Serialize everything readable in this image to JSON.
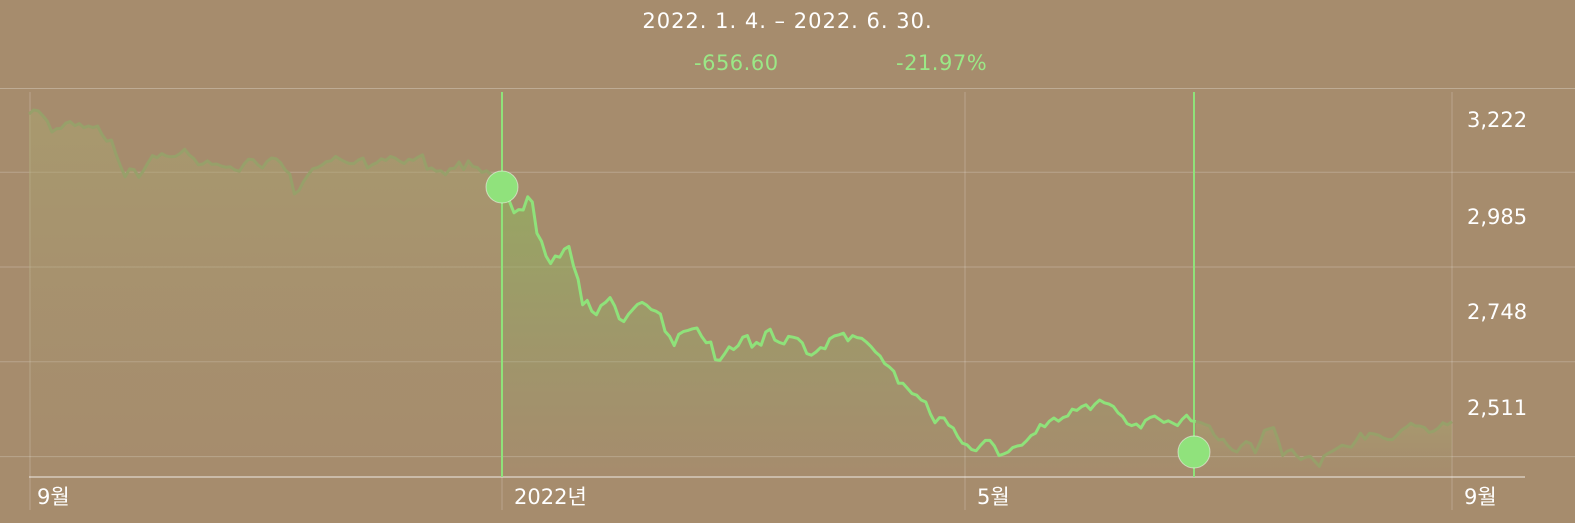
{
  "header": {
    "range": "2022. 1. 4. – 2022. 6. 30.",
    "change_value": "-656.60",
    "change_percent": "-21.97%"
  },
  "colors": {
    "background": "#a68c6d",
    "line_selected": "#8fe27a",
    "line_dim": "#97a06a",
    "marker": "#90e27c"
  },
  "chart_data": {
    "type": "area",
    "title": "",
    "y_tick_labels": [
      "3,222",
      "2,985",
      "2,748",
      "2,511"
    ],
    "y_ticks": [
      3222,
      2985,
      2748,
      2511
    ],
    "ylim": [
      2395,
      3355
    ],
    "x_tick_labels": [
      "9월",
      "2022년",
      "5월",
      "9월"
    ],
    "grid": true,
    "series": [
      {
        "values": [
          3300,
          3310,
          3308,
          3296,
          3282,
          3255,
          3263,
          3264,
          3277,
          3281,
          3271,
          3276,
          3266,
          3270,
          3266,
          3270,
          3248,
          3232,
          3235,
          3200,
          3170,
          3143,
          3163,
          3161,
          3142,
          3158,
          3178,
          3196,
          3191,
          3201,
          3195,
          3193,
          3194,
          3201,
          3212,
          3198,
          3189,
          3173,
          3175,
          3183,
          3174,
          3175,
          3170,
          3167,
          3168,
          3160,
          3157,
          3175,
          3187,
          3186,
          3173,
          3165,
          3181,
          3190,
          3188,
          3178,
          3160,
          3150,
          3100,
          3109,
          3131,
          3148,
          3163,
          3166,
          3172,
          3181,
          3183,
          3194,
          3187,
          3181,
          3176,
          3176,
          3185,
          3190,
          3165,
          3173,
          3178,
          3188,
          3184,
          3194,
          3190,
          3182,
          3176,
          3187,
          3184,
          3192,
          3198,
          3162,
          3165,
          3157,
          3158,
          3148,
          3163,
          3164,
          3180,
          3161,
          3183,
          3169,
          3166,
          3154,
          3158,
          3149,
          3147,
          3121,
          3108,
          3082,
          3053,
          3061,
          3060,
          3093,
          3080,
          3002,
          2982,
          2945,
          2926,
          2945,
          2942,
          2962,
          2969,
          2920,
          2887,
          2823,
          2834,
          2807,
          2798,
          2821,
          2829,
          2841,
          2820,
          2788,
          2781,
          2799,
          2812,
          2824,
          2829,
          2822,
          2811,
          2807,
          2800,
          2757,
          2744,
          2721,
          2749,
          2756,
          2759,
          2763,
          2765,
          2744,
          2728,
          2730,
          2686,
          2684,
          2700,
          2718,
          2711,
          2721,
          2742,
          2746,
          2717,
          2729,
          2722,
          2755,
          2762,
          2735,
          2729,
          2725,
          2744,
          2742,
          2739,
          2728,
          2701,
          2697,
          2705,
          2716,
          2713,
          2738,
          2745,
          2748,
          2752,
          2733,
          2746,
          2741,
          2739,
          2730,
          2719,
          2705,
          2695,
          2676,
          2668,
          2657,
          2627,
          2627,
          2614,
          2601,
          2597,
          2585,
          2580,
          2550,
          2528,
          2541,
          2540,
          2522,
          2515,
          2493,
          2477,
          2473,
          2461,
          2458,
          2472,
          2484,
          2484,
          2470,
          2446,
          2450,
          2455,
          2466,
          2470,
          2472,
          2483,
          2496,
          2502,
          2524,
          2518,
          2532,
          2540,
          2532,
          2541,
          2545,
          2562,
          2559,
          2568,
          2573,
          2561,
          2575,
          2585,
          2578,
          2575,
          2569,
          2553,
          2544,
          2526,
          2521,
          2525,
          2515,
          2534,
          2541,
          2545,
          2537,
          2529,
          2533,
          2527,
          2521,
          2536,
          2547,
          2533,
          2531,
          2529,
          2524,
          2520,
          2498,
          2485,
          2487,
          2471,
          2460,
          2455,
          2471,
          2481,
          2476,
          2453,
          2478,
          2509,
          2513,
          2516,
          2485,
          2446,
          2457,
          2461,
          2446,
          2436,
          2442,
          2444,
          2432,
          2419,
          2445,
          2452,
          2458,
          2465,
          2472,
          2469,
          2467,
          2483,
          2502,
          2487,
          2502,
          2500,
          2497,
          2490,
          2486,
          2486,
          2497,
          2510,
          2517,
          2527,
          2520,
          2520,
          2516,
          2504,
          2507,
          2515,
          2528,
          2523,
          2531
        ]
      }
    ],
    "selection": {
      "start_value": 2988.77,
      "end_value": 2332.17
    }
  }
}
